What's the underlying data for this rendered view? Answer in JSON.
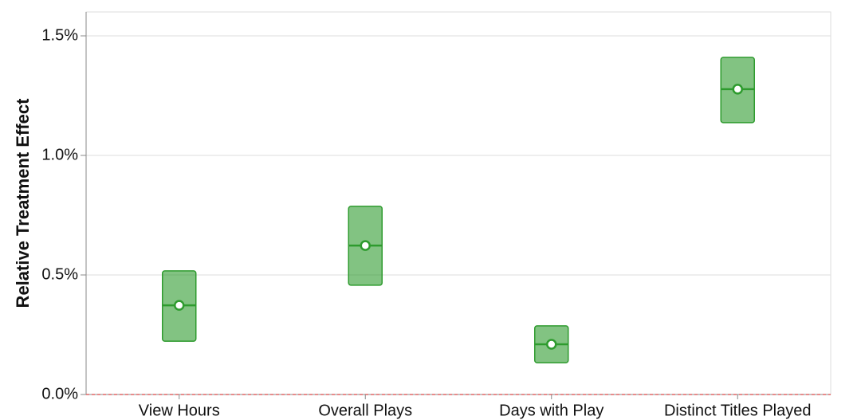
{
  "chart_data": {
    "type": "interval",
    "ylabel": "Relative Treatment Effect",
    "categories": [
      "View Hours",
      "Overall Plays",
      "Days with Play",
      "Distinct Titles Played"
    ],
    "values": [
      0.373,
      0.623,
      0.21,
      1.277
    ],
    "lower": [
      0.223,
      0.457,
      0.133,
      1.137
    ],
    "upper": [
      0.517,
      0.787,
      0.287,
      1.41
    ],
    "color": "#2e9b2e",
    "ylim": [
      0,
      1.6
    ],
    "yticks": [
      {
        "value": 0,
        "label": "0.0%"
      },
      {
        "value": 0.5,
        "label": "0.5%"
      },
      {
        "value": 1,
        "label": "1.0%"
      },
      {
        "value": 1.5,
        "label": "1.5%"
      }
    ],
    "grid": true,
    "reference_line": 0,
    "reference_color": "#e06666"
  }
}
